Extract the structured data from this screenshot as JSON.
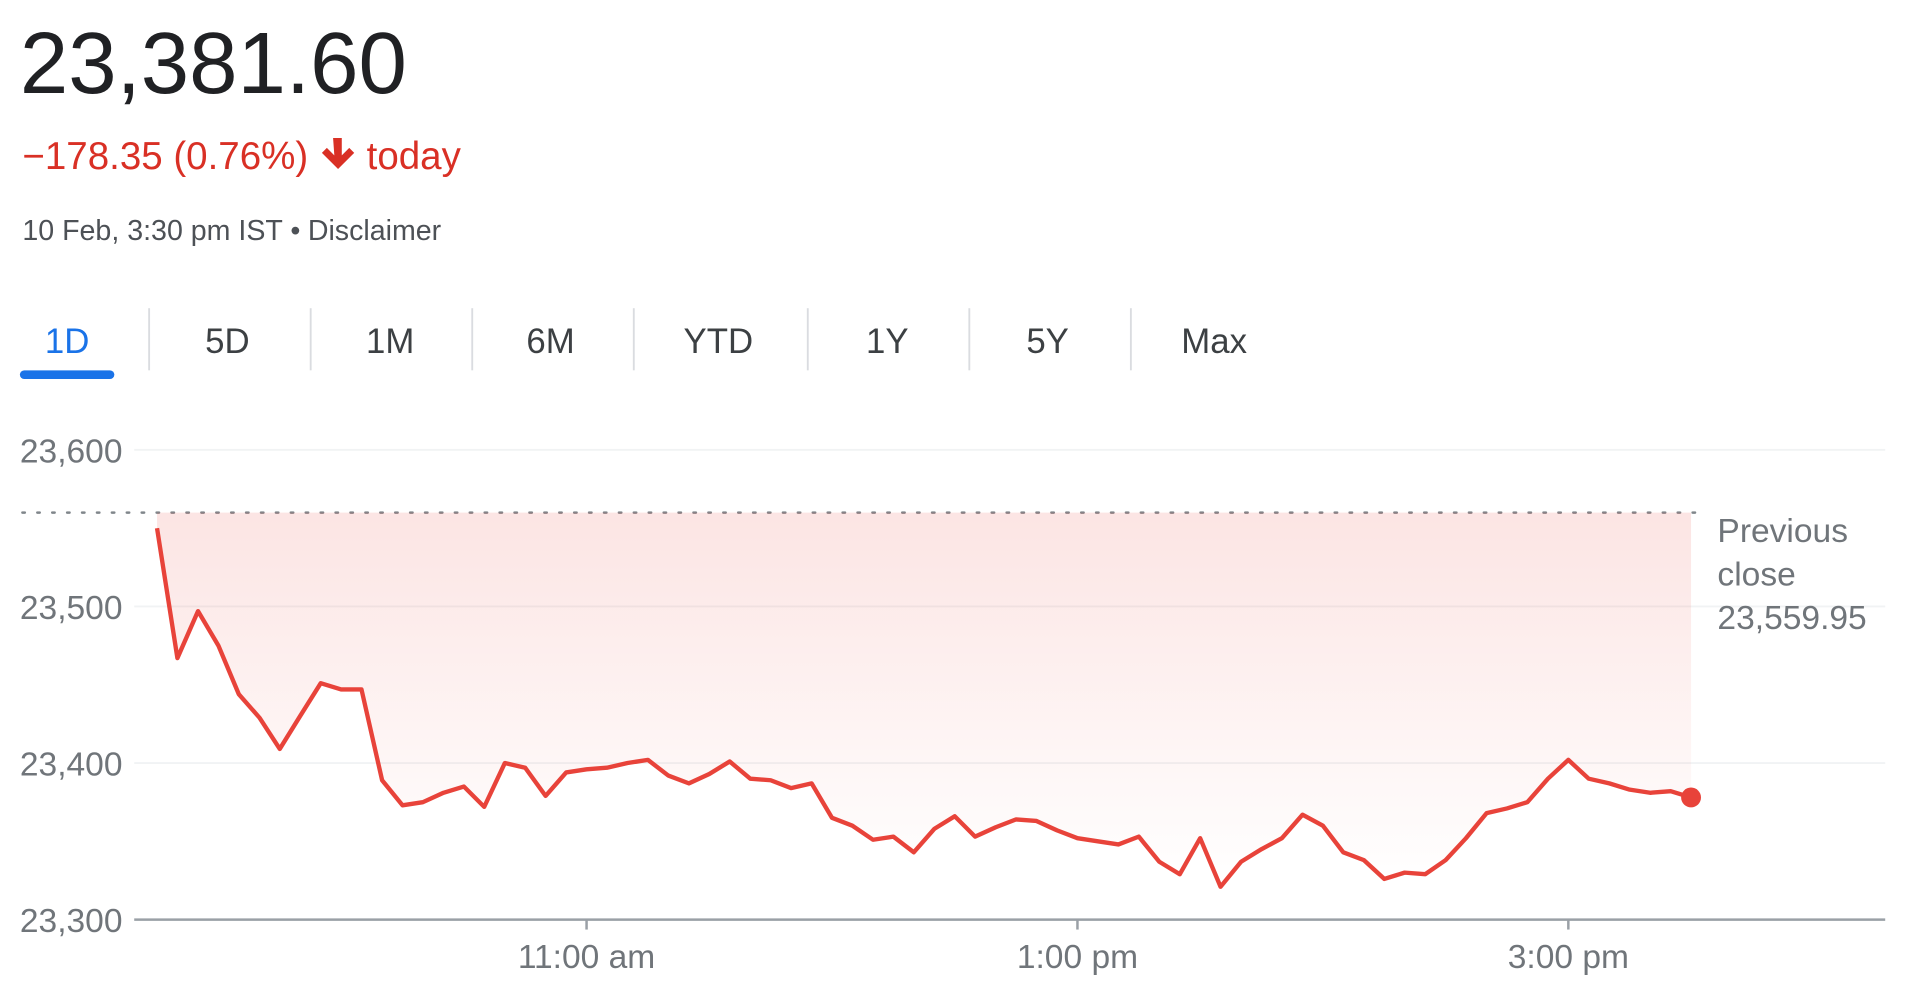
{
  "header": {
    "price": "23,381.60",
    "change": "−178.35 (0.76%)",
    "change_suffix": "today",
    "timestamp": "10 Feb, 3:30 pm IST",
    "separator": "•",
    "disclaimer": "Disclaimer"
  },
  "tabs": [
    "1D",
    "5D",
    "1M",
    "6M",
    "YTD",
    "1Y",
    "5Y",
    "Max"
  ],
  "active_tab": 0,
  "chart_data": {
    "type": "line",
    "x": [
      9.25,
      9.333,
      9.417,
      9.5,
      9.583,
      9.667,
      9.75,
      9.833,
      9.917,
      10,
      10.083,
      10.167,
      10.25,
      10.333,
      10.417,
      10.5,
      10.583,
      10.667,
      10.75,
      10.833,
      10.917,
      11,
      11.083,
      11.167,
      11.25,
      11.333,
      11.417,
      11.5,
      11.583,
      11.667,
      11.75,
      11.833,
      11.917,
      12,
      12.083,
      12.167,
      12.25,
      12.333,
      12.417,
      12.5,
      12.583,
      12.667,
      12.75,
      12.833,
      12.917,
      13,
      13.083,
      13.167,
      13.25,
      13.333,
      13.417,
      13.5,
      13.583,
      13.667,
      13.75,
      13.833,
      13.917,
      14,
      14.083,
      14.167,
      14.25,
      14.333,
      14.417,
      14.5,
      14.583,
      14.667,
      14.75,
      14.833,
      14.917,
      15,
      15.083,
      15.167,
      15.25,
      15.333,
      15.417,
      15.5
    ],
    "series": [
      {
        "color": "#e8433a",
        "values": [
          23550,
          23467,
          23497,
          23475,
          23444,
          23429,
          23409,
          23430,
          23451,
          23447,
          23447,
          23389,
          23373,
          23375,
          23381,
          23385,
          23372,
          23400,
          23397,
          23379,
          23394,
          23396,
          23397,
          23400,
          23402,
          23392,
          23387,
          23393,
          23401,
          23390,
          23389,
          23384,
          23387,
          23365,
          23360,
          23351,
          23353,
          23343,
          23358,
          23366,
          23353,
          23359,
          23364,
          23363,
          23357,
          23352,
          23350,
          23348,
          23353,
          23337,
          23329,
          23352,
          23321,
          23337,
          23345,
          23352,
          23367,
          23360,
          23343,
          23338,
          23326,
          23330,
          23329,
          23338,
          23352,
          23368,
          23371,
          23375,
          23390,
          23402,
          23390,
          23387,
          23383,
          23381,
          23382,
          23378
        ]
      }
    ],
    "xlim": [
      9.157,
      16.291
    ],
    "xticks": [
      {
        "value": 11,
        "label": "11:00 am"
      },
      {
        "value": 13,
        "label": "1:00 pm"
      },
      {
        "value": 15,
        "label": "3:00 pm"
      }
    ],
    "ylim": [
      23300,
      23600
    ],
    "yticks": [
      {
        "value": 23300,
        "label": "23,300"
      },
      {
        "value": 23400,
        "label": "23,400"
      },
      {
        "value": 23500,
        "label": "23,500"
      },
      {
        "value": 23600,
        "label": "23,600"
      }
    ],
    "grid": true,
    "reference_line": {
      "label": "Previous close",
      "value": 23559.95,
      "value_label": "23,559.95"
    }
  }
}
